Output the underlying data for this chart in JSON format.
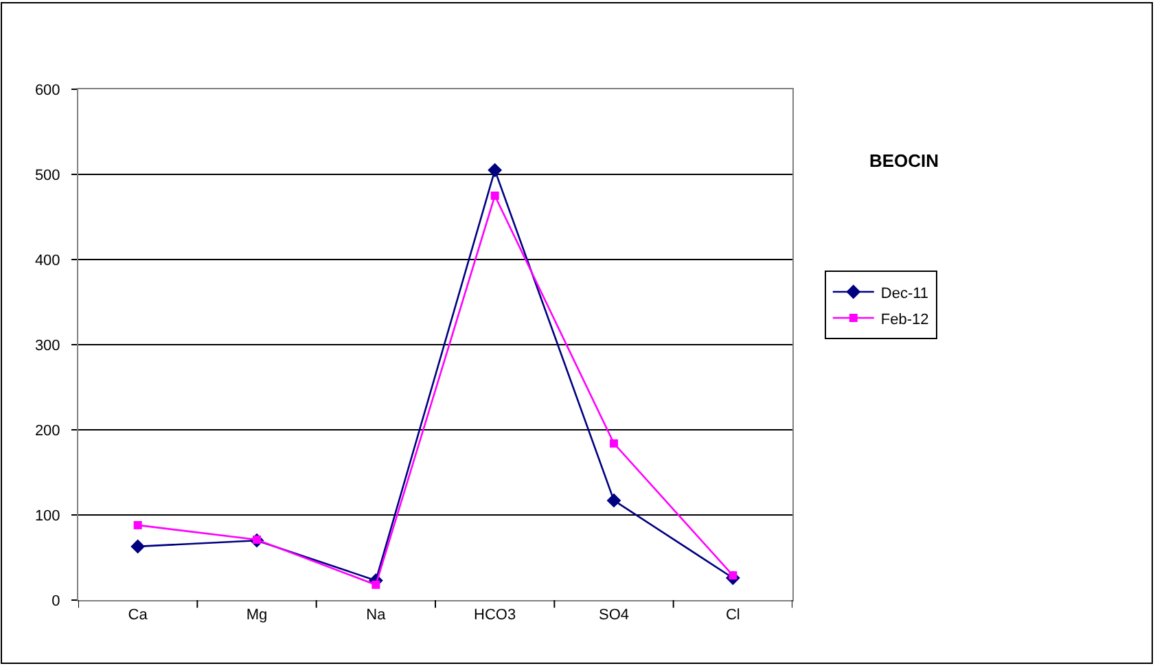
{
  "chart_data": {
    "type": "line",
    "title": "BEOCIN",
    "categories": [
      "Ca",
      "Mg",
      "Na",
      "HCO3",
      "SO4",
      "Cl"
    ],
    "series": [
      {
        "name": "Dec-11",
        "color": "#000080",
        "marker": "diamond",
        "values": [
          63,
          70,
          23,
          505,
          117,
          26
        ]
      },
      {
        "name": "Feb-12",
        "color": "#ff00ff",
        "marker": "square",
        "values": [
          88,
          71,
          18,
          475,
          184,
          29
        ]
      }
    ],
    "ylim": [
      0,
      600
    ],
    "yticks": [
      0,
      100,
      200,
      300,
      400,
      500,
      600
    ],
    "grid": "y",
    "legend": "right"
  }
}
